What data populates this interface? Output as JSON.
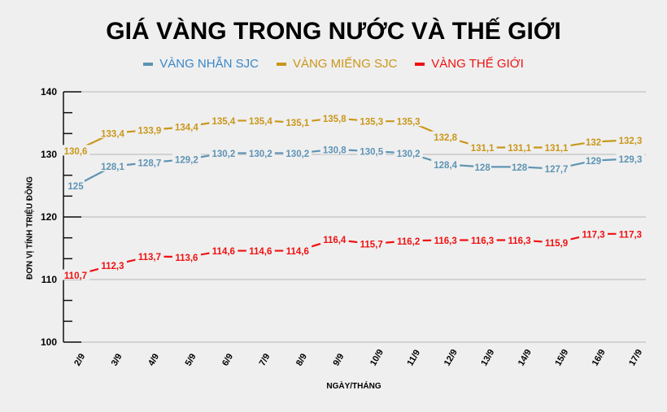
{
  "header": {
    "title": "GIÁ VÀNG TRONG NƯỚC VÀ THẾ GIỚI"
  },
  "legend": [
    {
      "label": "VÀNG NHẪN SJC",
      "text_color": "#3a86c8",
      "marker_color": "#5b93b5"
    },
    {
      "label": "VÀNG MIẾNG SJC",
      "text_color": "#c9971a",
      "marker_color": "#c9971a"
    },
    {
      "label": "VÀNG THẾ GIỚI",
      "text_color": "#f01010",
      "marker_color": "#f01010"
    }
  ],
  "axes": {
    "ylabel": "ĐƠN VỊ TÍNH TRIỆU ĐỒNG",
    "xlabel": "NGÀY/THÁNG"
  },
  "chart_data": {
    "type": "line",
    "title": "GIÁ VÀNG TRONG NƯỚC VÀ THẾ GIỚI",
    "xlabel": "NGÀY/THÁNG",
    "ylabel": "ĐƠN VỊ TÍNH TRIỆU ĐỒNG",
    "ylim": [
      100,
      140
    ],
    "yticks": [
      100,
      110,
      120,
      130,
      140
    ],
    "grid": true,
    "legend_position": "top",
    "categories": [
      "2/9",
      "3/9",
      "4/9",
      "5/9",
      "6/9",
      "7/9",
      "8/9",
      "9/9",
      "10/9",
      "11/9",
      "12/9",
      "13/9",
      "14/9",
      "15/9",
      "16/9",
      "17/9"
    ],
    "series": [
      {
        "name": "VÀNG NHẪN SJC",
        "color": "#5e94b4",
        "values": [
          125,
          128.1,
          128.7,
          129.2,
          130.2,
          130.2,
          130.2,
          130.8,
          130.5,
          130.2,
          128.4,
          128,
          128,
          127.7,
          129,
          129.3
        ],
        "labels": [
          "125",
          "128,1",
          "128,7",
          "129,2",
          "130,2",
          "130,2",
          "130,2",
          "130,8",
          "130,5",
          "130,2",
          "128,4",
          "128",
          "128",
          "127,7",
          "129",
          "129,3"
        ]
      },
      {
        "name": "VÀNG MIẾNG SJC",
        "color": "#c9971a",
        "values": [
          130.6,
          133.4,
          133.9,
          134.4,
          135.4,
          135.4,
          135.1,
          135.8,
          135.3,
          135.3,
          132.8,
          131.1,
          131.1,
          131.1,
          132,
          132.3
        ],
        "labels": [
          "130,6",
          "133,4",
          "133,9",
          "134,4",
          "135,4",
          "135,4",
          "135,1",
          "135,8",
          "135,3",
          "135,3",
          "132,8",
          "131,1",
          "131,1",
          "131,1",
          "132",
          "132,3"
        ]
      },
      {
        "name": "VÀNG THẾ GIỚI",
        "color": "#f01010",
        "values": [
          110.7,
          112.3,
          113.7,
          113.6,
          114.6,
          114.6,
          114.6,
          116.4,
          115.7,
          116.2,
          116.3,
          116.3,
          116.3,
          115.9,
          117.3,
          117.3
        ],
        "labels": [
          "110,7",
          "112,3",
          "113,7",
          "113,6",
          "114,6",
          "114,6",
          "114,6",
          "116,4",
          "115,7",
          "116,2",
          "116,3",
          "116,3",
          "116,3",
          "115,9",
          "117,3",
          "117,3"
        ]
      }
    ]
  }
}
